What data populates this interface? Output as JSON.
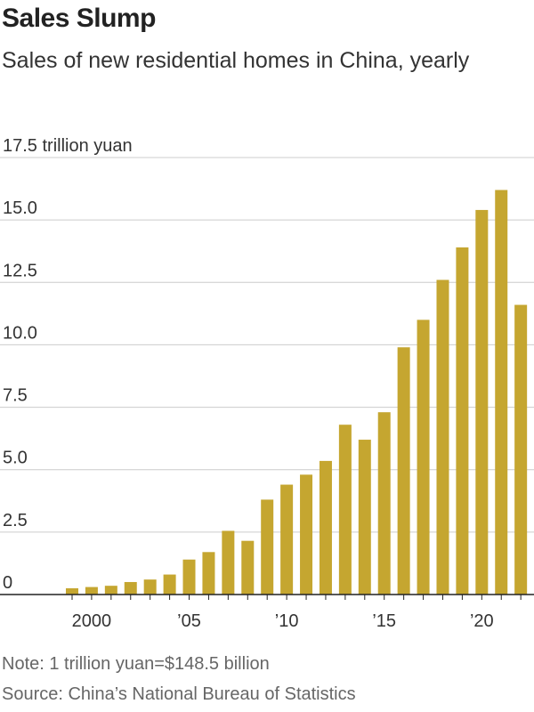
{
  "title": "Sales Slump",
  "subtitle": "Sales of new residential homes in China, yearly",
  "note": "Note: 1 trillion yuan=$148.5 billion",
  "source": "Source: China’s National Bureau of Statistics",
  "colors": {
    "bar": "#c5a630",
    "grid": "#cccccc",
    "axis": "#222222"
  },
  "chart_data": {
    "type": "bar",
    "title": "Sales Slump",
    "subtitle": "Sales of new residential homes in China, yearly",
    "ylabel": "",
    "y_unit_label": "17.5 trillion yuan",
    "ylim": [
      0,
      17.5
    ],
    "yticks": [
      0,
      2.5,
      5.0,
      7.5,
      10.0,
      12.5,
      15.0,
      17.5
    ],
    "ytick_labels": [
      "0",
      "2.5",
      "5.0",
      "7.5",
      "10.0",
      "12.5",
      "15.0",
      "17.5 trillion yuan"
    ],
    "xtick_labels": [
      {
        "year": 2000,
        "label": "2000"
      },
      {
        "year": 2005,
        "label": "’05"
      },
      {
        "year": 2010,
        "label": "’10"
      },
      {
        "year": 2015,
        "label": "’15"
      },
      {
        "year": 2020,
        "label": "’20"
      }
    ],
    "categories": [
      1999,
      2000,
      2001,
      2002,
      2003,
      2004,
      2005,
      2006,
      2007,
      2008,
      2009,
      2010,
      2011,
      2012,
      2013,
      2014,
      2015,
      2016,
      2017,
      2018,
      2019,
      2020,
      2021,
      2022
    ],
    "values": [
      0.25,
      0.3,
      0.35,
      0.5,
      0.6,
      0.8,
      1.4,
      1.7,
      2.55,
      2.15,
      3.8,
      4.4,
      4.8,
      5.35,
      6.8,
      6.2,
      7.3,
      9.9,
      11.0,
      12.6,
      13.9,
      15.4,
      16.2,
      11.6
    ],
    "grid": true
  }
}
